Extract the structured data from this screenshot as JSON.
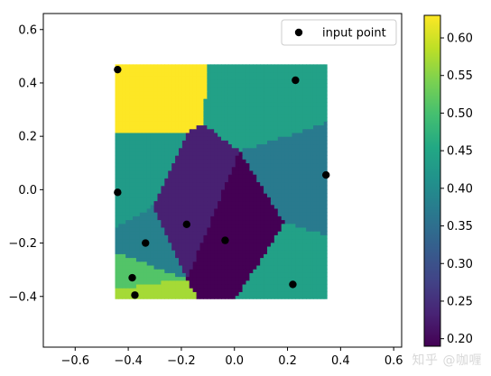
{
  "chart_data": {
    "type": "heatmap",
    "xlim": [
      -0.72,
      0.63
    ],
    "ylim": [
      -0.59,
      0.66
    ],
    "grid": false,
    "legend_placement": "top-right",
    "xticks": [
      -0.6,
      -0.4,
      -0.2,
      0.0,
      0.2,
      0.4,
      0.6
    ],
    "xtick_labels": [
      "−0.6",
      "−0.4",
      "−0.2",
      "0.0",
      "0.2",
      "0.4",
      "0.6"
    ],
    "yticks": [
      -0.4,
      -0.2,
      0.0,
      0.2,
      0.4,
      0.6
    ],
    "ytick_labels": [
      "−0.4",
      "−0.2",
      "0.0",
      "0.2",
      "0.4",
      "0.6"
    ],
    "region_bounds": {
      "x": [
        -0.45,
        0.35
      ],
      "y": [
        -0.41,
        0.47
      ]
    },
    "input_points": [
      {
        "x": -0.44,
        "y": 0.45,
        "value": 0.63
      },
      {
        "x": 0.23,
        "y": 0.41,
        "value": 0.44
      },
      {
        "x": 0.345,
        "y": 0.055,
        "value": 0.37
      },
      {
        "x": -0.44,
        "y": -0.01,
        "value": 0.43
      },
      {
        "x": -0.18,
        "y": -0.13,
        "value": 0.23
      },
      {
        "x": -0.035,
        "y": -0.19,
        "value": 0.19
      },
      {
        "x": -0.335,
        "y": -0.2,
        "value": 0.38
      },
      {
        "x": 0.22,
        "y": -0.355,
        "value": 0.44
      },
      {
        "x": -0.385,
        "y": -0.33,
        "value": 0.51
      },
      {
        "x": -0.375,
        "y": -0.395,
        "value": 0.57
      }
    ],
    "legend": [
      {
        "label": "input point",
        "marker": "black-circle"
      }
    ],
    "colorbar": {
      "colormap": "viridis",
      "range": [
        0.19,
        0.63
      ],
      "ticks": [
        0.2,
        0.25,
        0.3,
        0.35,
        0.4,
        0.45,
        0.5,
        0.55,
        0.6
      ],
      "tick_labels": [
        "0.20",
        "0.25",
        "0.30",
        "0.35",
        "0.40",
        "0.45",
        "0.50",
        "0.55",
        "0.60"
      ]
    },
    "title": "",
    "xlabel": "",
    "ylabel": ""
  },
  "watermark": "知乎 @咖喱"
}
